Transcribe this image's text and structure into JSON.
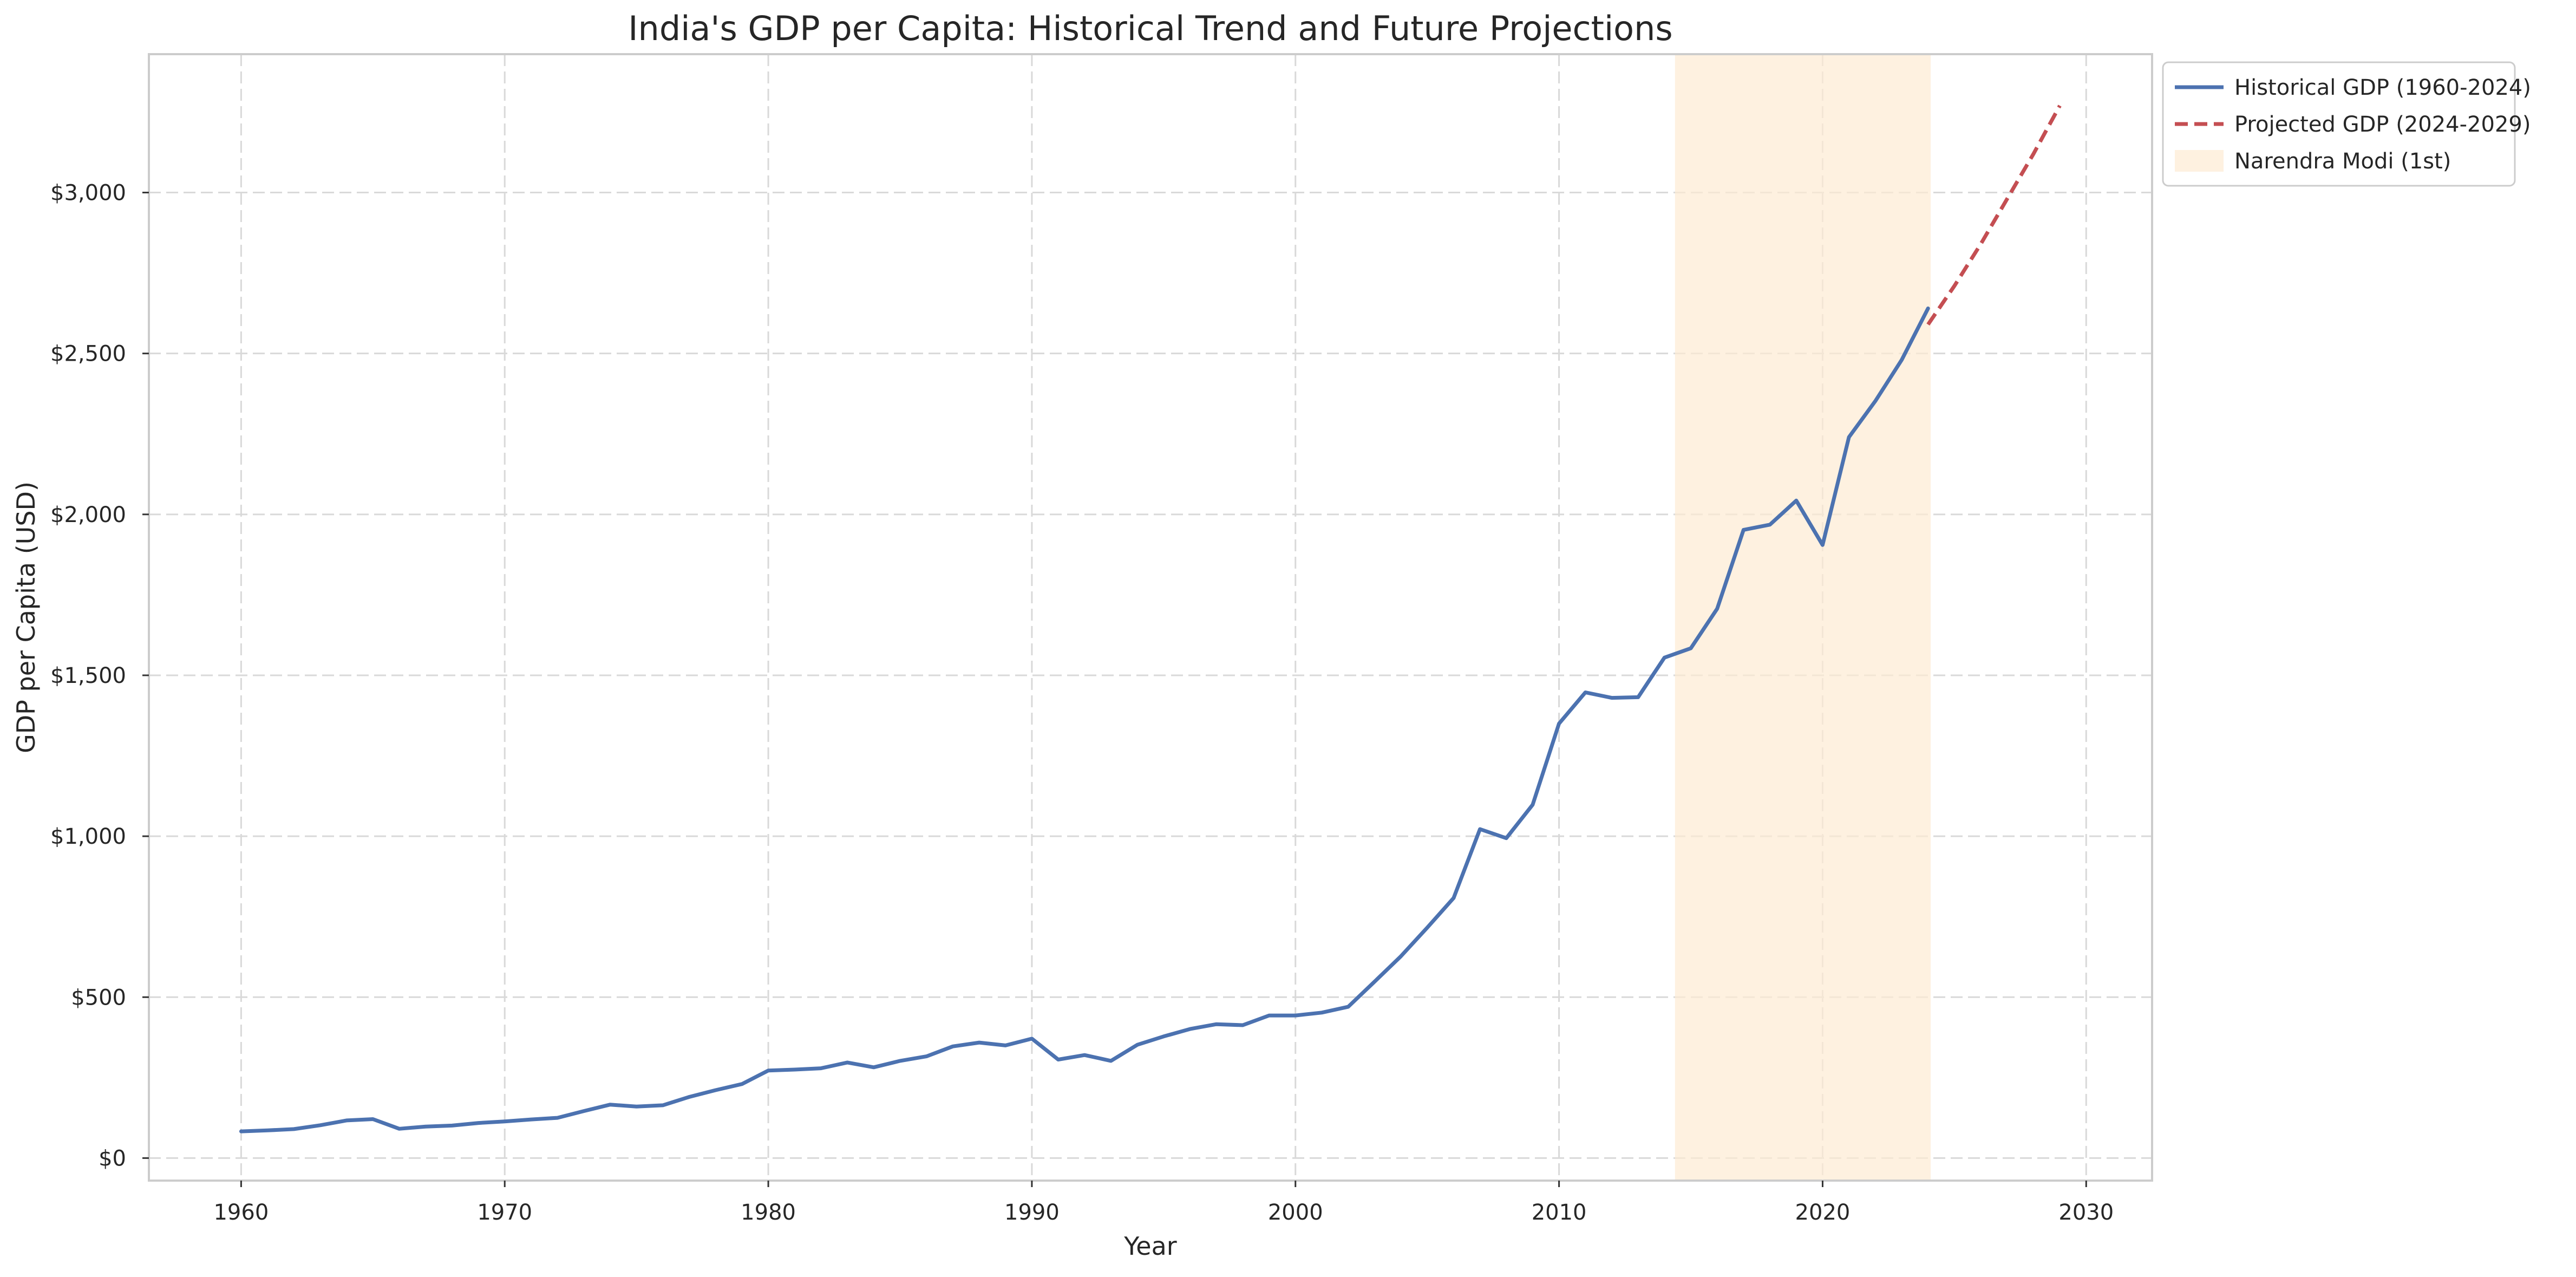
{
  "chart_data": {
    "type": "line",
    "title": "India's GDP per Capita: Historical Trend and Future Projections",
    "xlabel": "Year",
    "ylabel": "GDP per Capita (USD)",
    "xlim": [
      1956.5,
      2032.5
    ],
    "ylim": [
      -70,
      3430
    ],
    "x_ticks": [
      1960,
      1970,
      1980,
      1990,
      2000,
      2010,
      2020,
      2030
    ],
    "y_ticks": [
      0,
      500,
      1000,
      1500,
      2000,
      2500,
      3000
    ],
    "y_tick_labels": [
      "$0",
      "$500",
      "$1,000",
      "$1,500",
      "$2,000",
      "$2,500",
      "$3,000"
    ],
    "grid": true,
    "legend_position": "outside top-right",
    "series": [
      {
        "name": "Historical GDP (1960-2024)",
        "style": "solid",
        "color": "#4c72b0",
        "x": [
          1960,
          1961,
          1962,
          1963,
          1964,
          1965,
          1966,
          1967,
          1968,
          1969,
          1970,
          1971,
          1972,
          1973,
          1974,
          1975,
          1976,
          1977,
          1978,
          1979,
          1980,
          1981,
          1982,
          1983,
          1984,
          1985,
          1986,
          1987,
          1988,
          1989,
          1990,
          1991,
          1992,
          1993,
          1994,
          1995,
          1996,
          1997,
          1998,
          1999,
          2000,
          2001,
          2002,
          2003,
          2004,
          2005,
          2006,
          2007,
          2008,
          2009,
          2010,
          2011,
          2012,
          2013,
          2014,
          2015,
          2016,
          2017,
          2018,
          2019,
          2020,
          2021,
          2022,
          2023,
          2024
        ],
        "values": [
          83,
          86,
          90,
          102,
          117,
          121,
          91,
          98,
          101,
          109,
          114,
          120,
          125,
          146,
          166,
          160,
          164,
          190,
          211,
          230,
          272,
          275,
          279,
          297,
          282,
          302,
          316,
          347,
          359,
          350,
          371,
          306,
          320,
          302,
          352,
          378,
          401,
          416,
          413,
          443,
          443,
          452,
          470,
          548,
          627,
          716,
          808,
          1022,
          994,
          1098,
          1350,
          1447,
          1430,
          1432,
          1555,
          1584,
          1707,
          1952,
          1968,
          2043,
          1905,
          2240,
          2352,
          2480,
          2640
        ]
      },
      {
        "name": "Projected GDP (2024-2029)",
        "style": "dashed",
        "color": "#c44e52",
        "x": [
          2024,
          2025,
          2026,
          2027,
          2028,
          2029
        ],
        "values": [
          2590,
          2710,
          2840,
          2980,
          3120,
          3270
        ]
      }
    ],
    "shaded_regions": [
      {
        "name": "Narendra Modi (1st)",
        "x_start": 2014.4,
        "x_end": 2024.1,
        "color": "#fdebd3"
      }
    ]
  }
}
